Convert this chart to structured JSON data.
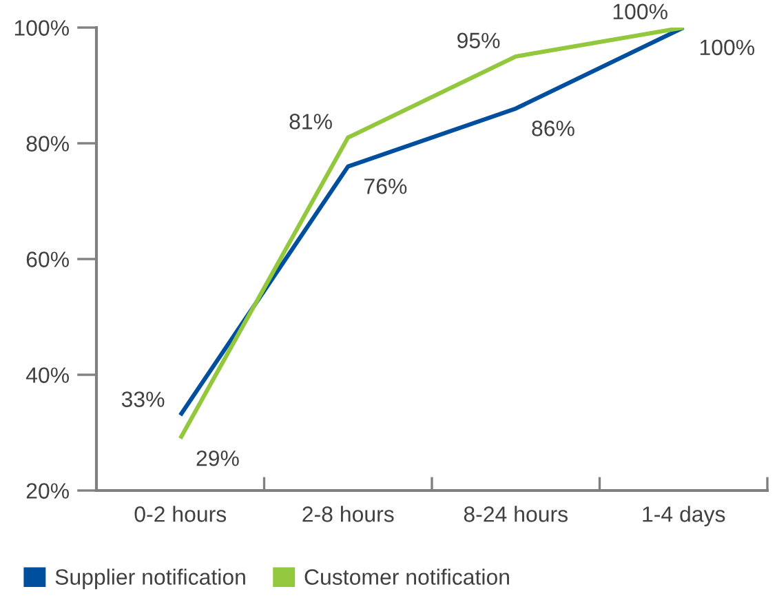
{
  "chart_data": {
    "type": "line",
    "categories": [
      "0-2 hours",
      "2-8 hours",
      "8-24 hours",
      "1-4 days"
    ],
    "series": [
      {
        "name": "Supplier notification",
        "color": "#004f9f",
        "values": [
          33,
          76,
          86,
          100
        ],
        "value_labels": [
          "33%",
          "76%",
          "86%",
          "100%"
        ]
      },
      {
        "name": "Customer notification",
        "color": "#93c83e",
        "values": [
          29,
          81,
          95,
          100
        ],
        "value_labels": [
          "29%",
          "81%",
          "95%",
          "100%"
        ]
      }
    ],
    "ylim": [
      20,
      100
    ],
    "yticks": [
      {
        "value": 20,
        "label": "20%"
      },
      {
        "value": 40,
        "label": "40%"
      },
      {
        "value": 60,
        "label": "60%"
      },
      {
        "value": 80,
        "label": "80%"
      },
      {
        "value": 100,
        "label": "100%"
      }
    ],
    "grid": false,
    "legend": "bottom left",
    "marker": "none",
    "line_style": "solid"
  }
}
